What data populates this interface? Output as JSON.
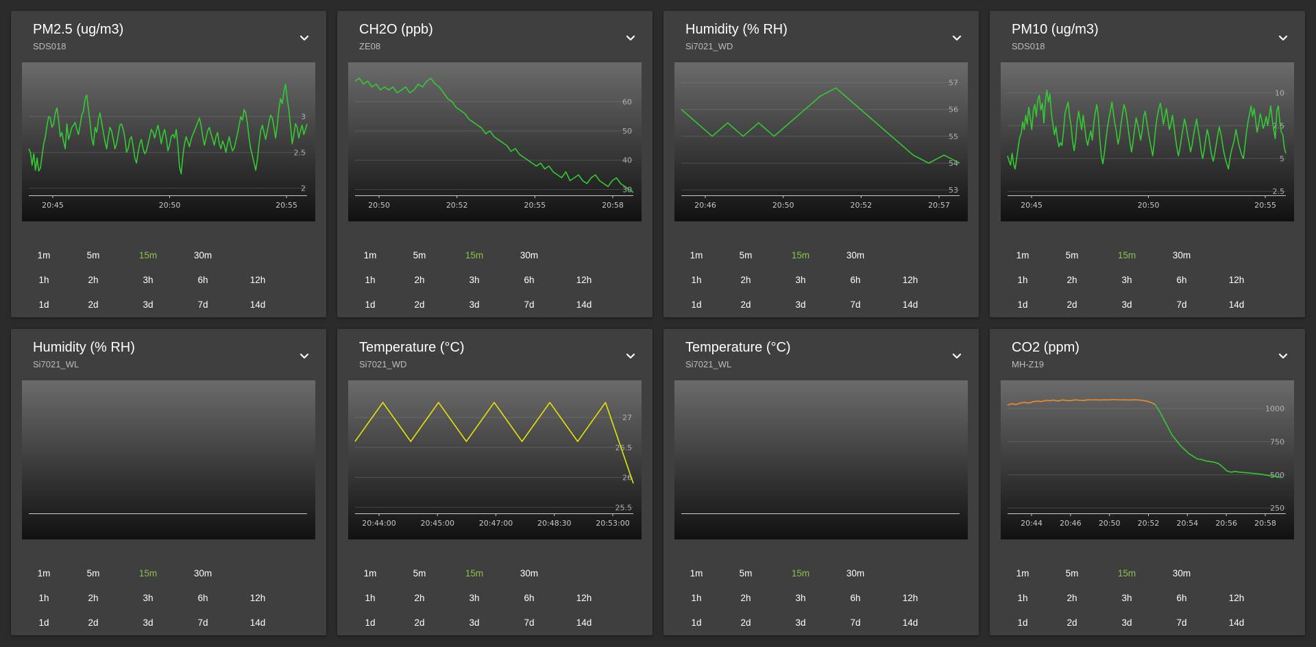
{
  "colors": {
    "green": "#33cc33",
    "yellow": "#e6e600",
    "orange": "#f28b2b",
    "selected_range": "#8bc34a"
  },
  "menu_icon": "chevron-down-icon",
  "range_rows": [
    [
      "1m",
      "5m",
      "15m",
      "30m"
    ],
    [
      "1h",
      "2h",
      "3h",
      "6h",
      "12h"
    ],
    [
      "1d",
      "2d",
      "3d",
      "7d",
      "14d"
    ]
  ],
  "selected_range": "15m",
  "cards": [
    {
      "title": "PM2.5 (ug/m3)",
      "subtitle": "SDS018",
      "chart_data": {
        "type": "line",
        "ylim": [
          1.9,
          3.7
        ],
        "yticks": [
          {
            "v": 2,
            "label": "2"
          },
          {
            "v": 2.5,
            "label": "2.5"
          },
          {
            "v": 3,
            "label": "3"
          }
        ],
        "xlabels": [
          "20:45",
          "20:50",
          "20:55"
        ],
        "series": [
          {
            "name": "PM2.5",
            "color": "green",
            "y": [
              2.55,
              2.5,
              2.32,
              2.48,
              2.25,
              2.42,
              2.24,
              2.28,
              2.45,
              2.62,
              2.72,
              2.88,
              3.0,
              2.98,
              2.85,
              2.9,
              3.05,
              3.12,
              2.95,
              2.72,
              2.78,
              2.65,
              2.55,
              2.9,
              2.68,
              2.76,
              2.85,
              2.88,
              2.92,
              2.82,
              2.75,
              2.88,
              3.02,
              3.08,
              3.25,
              3.3,
              3.1,
              2.92,
              2.7,
              2.6,
              2.85,
              2.78,
              2.95,
              3.05,
              2.92,
              2.78,
              2.65,
              2.55,
              2.72,
              2.85,
              2.8,
              2.68,
              2.55,
              2.62,
              2.75,
              2.88,
              2.9,
              2.82,
              2.7,
              2.5,
              2.55,
              2.68,
              2.72,
              2.58,
              2.42,
              2.35,
              2.5,
              2.62,
              2.68,
              2.55,
              2.48,
              2.52,
              2.62,
              2.72,
              2.82,
              2.78,
              2.7,
              2.8,
              2.88,
              2.76,
              2.62,
              2.75,
              2.82,
              2.7,
              2.52,
              2.6,
              2.72,
              2.75,
              2.7,
              2.82,
              2.6,
              2.3,
              2.2,
              2.45,
              2.62,
              2.72,
              2.65,
              2.58,
              2.68,
              2.75,
              2.8,
              2.86,
              2.92,
              2.98,
              2.88,
              2.72,
              2.6,
              2.7,
              2.8,
              2.85,
              2.76,
              2.68,
              2.6,
              2.72,
              2.78,
              2.62,
              2.55,
              2.66,
              2.6,
              2.5,
              2.62,
              2.72,
              2.6,
              2.52,
              2.56,
              2.66,
              2.76,
              2.88,
              3.0,
              2.95,
              3.1,
              3.05,
              2.9,
              2.7,
              2.55,
              2.45,
              2.35,
              2.25,
              2.4,
              2.62,
              2.8,
              2.88,
              2.78,
              2.68,
              2.8,
              2.92,
              3.02,
              2.98,
              2.85,
              2.7,
              2.88,
              3.1,
              3.25,
              3.18,
              3.35,
              3.45,
              3.25,
              3.1,
              2.88,
              2.62,
              2.75,
              2.9,
              2.85,
              2.7,
              2.8,
              2.88,
              2.75,
              2.82,
              2.9
            ]
          }
        ]
      }
    },
    {
      "title": "CH2O (ppb)",
      "subtitle": "ZE08",
      "chart_data": {
        "type": "line",
        "ylim": [
          28,
          72
        ],
        "yticks": [
          {
            "v": 30,
            "label": "30"
          },
          {
            "v": 40,
            "label": "40"
          },
          {
            "v": 50,
            "label": "50"
          },
          {
            "v": 60,
            "label": "60"
          }
        ],
        "xlabels": [
          "20:50",
          "20:52",
          "20:55",
          "20:58"
        ],
        "series": [
          {
            "name": "CH2O",
            "color": "green",
            "y": [
              67,
              68,
              66,
              67,
              65,
              66,
              64,
              65,
              64,
              65,
              63,
              64,
              65,
              63,
              64,
              66,
              65,
              67,
              68,
              66,
              65,
              63,
              61,
              60,
              58,
              57,
              56,
              54,
              53,
              52,
              51,
              49,
              50,
              48,
              47,
              46,
              45,
              43,
              44,
              42,
              41,
              40,
              39,
              38,
              39,
              37,
              38,
              36,
              35,
              34,
              36,
              33,
              34,
              35,
              33,
              32,
              34,
              35,
              33,
              32,
              31,
              33,
              34,
              32,
              31,
              30,
              29
            ]
          }
        ]
      }
    },
    {
      "title": "Humidity (% RH)",
      "subtitle": "Si7021_WD",
      "chart_data": {
        "type": "line",
        "ylim": [
          52.8,
          57.6
        ],
        "yticks": [
          {
            "v": 53,
            "label": "53"
          },
          {
            "v": 54,
            "label": "54"
          },
          {
            "v": 55,
            "label": "55"
          },
          {
            "v": 56,
            "label": "56"
          },
          {
            "v": 57,
            "label": "57"
          }
        ],
        "xlabels": [
          "20:46",
          "20:50",
          "20:52",
          "20:57"
        ],
        "series": [
          {
            "name": "Humidity",
            "color": "green",
            "y": [
              56,
              55.5,
              55,
              55.5,
              55,
              55.5,
              55,
              55.5,
              56,
              56.5,
              56.8,
              56.3,
              55.8,
              55.3,
              54.8,
              54.3,
              54,
              54.3,
              54
            ]
          }
        ]
      }
    },
    {
      "title": "PM10 (ug/m3)",
      "subtitle": "SDS018",
      "chart_data": {
        "type": "line",
        "ylim": [
          2.2,
          12
        ],
        "yticks": [
          {
            "v": 2.5,
            "label": "2.5"
          },
          {
            "v": 5,
            "label": "5"
          },
          {
            "v": 7.5,
            "label": "7.5"
          },
          {
            "v": 10,
            "label": "10"
          }
        ],
        "xlabels": [
          "20:45",
          "20:50",
          "20:55"
        ],
        "series": [
          {
            "name": "PM10",
            "color": "green",
            "y": [
              5.2,
              4.8,
              4.5,
              5.4,
              4.6,
              4.2,
              5.0,
              5.8,
              6.6,
              6.9,
              7.8,
              7.2,
              8.3,
              7.6,
              8.9,
              8.1,
              7.2,
              8.6,
              9.1,
              8.2,
              9.5,
              9.8,
              8.7,
              9.2,
              7.7,
              9.4,
              10.2,
              9.3,
              9.9,
              8.4,
              7.6,
              6.8,
              7.4,
              6.5,
              5.9,
              6.2,
              6.0,
              7.1,
              8.4,
              8.9,
              9.3,
              8.2,
              7.5,
              6.3,
              5.6,
              6.4,
              7.8,
              8.6,
              7.9,
              7.2,
              8.3,
              7.4,
              6.5,
              6.0,
              6.6,
              7.1,
              6.4,
              7.7,
              8.5,
              9.1,
              8.2,
              6.5,
              5.2,
              4.6,
              5.4,
              6.4,
              7.3,
              8.0,
              8.6,
              9.3,
              8.4,
              7.6,
              7.0,
              6.1,
              6.6,
              7.6,
              8.4,
              9.1,
              8.7,
              8.0,
              7.1,
              6.2,
              5.5,
              6.3,
              7.2,
              8.1,
              7.6,
              7.0,
              6.4,
              7.1,
              8.2,
              8.6,
              7.8,
              7.1,
              6.4,
              5.8,
              5.2,
              6.2,
              7.4,
              8.2,
              8.8,
              9.2,
              8.5,
              7.6,
              8.2,
              8.8,
              8.0,
              7.2,
              7.6,
              8.3,
              7.5,
              6.6,
              5.8,
              5.2,
              5.8,
              6.6,
              7.3,
              8.0,
              7.5,
              6.8,
              6.2,
              5.5,
              6.0,
              6.8,
              7.4,
              8.0,
              7.2,
              6.5,
              5.6,
              5.0,
              5.6,
              6.5,
              7.2,
              6.7,
              5.9,
              5.2,
              4.8,
              5.4,
              6.1,
              6.8,
              7.4,
              6.9,
              6.2,
              5.5,
              5.0,
              4.6,
              4.2,
              5.0,
              5.6,
              6.0,
              6.5,
              7.2,
              6.6,
              6.0,
              5.6,
              5.2,
              5.0,
              6.0,
              7.0,
              7.8,
              8.4,
              9.0,
              8.2,
              8.8,
              7.9,
              7.0,
              7.6,
              8.4,
              8.0,
              7.3,
              7.6,
              8.2,
              7.5,
              8.2,
              9.0,
              8.0,
              7.2,
              6.5,
              8.6,
              9.0,
              7.8,
              7.0,
              6.8,
              5.8,
              5.4
            ]
          }
        ]
      }
    },
    {
      "title": "Humidity (% RH)",
      "subtitle": "Si7021_WL",
      "chart_data": {
        "type": "line",
        "ylim": [
          0,
          1
        ],
        "yticks": [],
        "xlabels": [],
        "series": []
      }
    },
    {
      "title": "Temperature (°C)",
      "subtitle": "Si7021_WD",
      "chart_data": {
        "type": "line",
        "ylim": [
          25.4,
          27.55
        ],
        "yticks": [
          {
            "v": 25.5,
            "label": "25.5"
          },
          {
            "v": 26,
            "label": "26"
          },
          {
            "v": 26.5,
            "label": "26.5"
          },
          {
            "v": 27,
            "label": "27"
          }
        ],
        "xlabels": [
          "20:44:00",
          "20:45:00",
          "20:47:00",
          "20:48:30",
          "20:53:00"
        ],
        "series": [
          {
            "name": "Temperature",
            "color": "yellow",
            "y": [
              26.6,
              27.25,
              26.6,
              27.25,
              26.6,
              27.25,
              26.6,
              27.25,
              26.6,
              27.25,
              25.9
            ]
          }
        ]
      }
    },
    {
      "title": "Temperature (°C)",
      "subtitle": "Si7021_WL",
      "chart_data": {
        "type": "line",
        "ylim": [
          0,
          1
        ],
        "yticks": [],
        "xlabels": [],
        "series": []
      }
    },
    {
      "title": "CO2 (ppm)",
      "subtitle": "MH-Z19",
      "chart_data": {
        "type": "line",
        "ylim": [
          210,
          1180
        ],
        "yticks": [
          {
            "v": 250,
            "label": "250"
          },
          {
            "v": 500,
            "label": "500"
          },
          {
            "v": 750,
            "label": "750"
          },
          {
            "v": 1000,
            "label": "1000"
          }
        ],
        "xlabels": [
          "20:44",
          "20:46",
          "20:50",
          "20:52",
          "20:54",
          "20:56",
          "20:58"
        ],
        "series": [
          {
            "name": "CO2",
            "color": "orange",
            "y": [
              1025,
              1035,
              1030,
              1040,
              1045,
              1040,
              1050,
              1055,
              1052,
              1060,
              1058,
              1062,
              1055,
              1064,
              1060,
              1058,
              1065,
              1062,
              1060,
              1065,
              1064,
              1065,
              1063,
              1065,
              1064,
              1066,
              1065,
              1064,
              1065,
              1063,
              1065,
              1064,
              1060,
              1055,
              1045,
              1030
            ]
          },
          {
            "name": "CO2-falling",
            "color": "green",
            "y": [
              1030,
              980,
              920,
              860,
              800,
              760,
              720,
              690,
              660,
              640,
              620,
              615,
              605,
              600,
              595,
              585,
              560,
              530,
              520,
              525,
              520,
              518,
              515,
              512,
              508,
              505,
              500,
              495,
              490,
              485,
              480
            ]
          }
        ]
      }
    }
  ]
}
